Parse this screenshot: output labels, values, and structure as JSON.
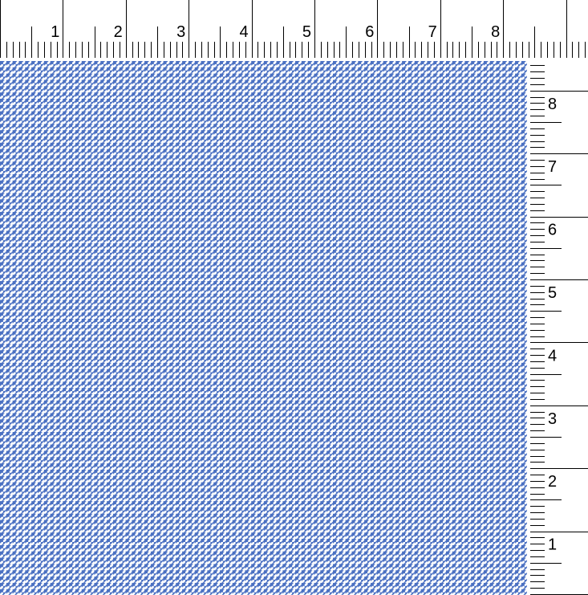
{
  "swatch": {
    "pattern": "houndstooth",
    "colors": {
      "primary": "#4a70c2",
      "background": "#ffffff"
    }
  },
  "top_ruler": {
    "labels": [
      "1",
      "2",
      "3",
      "4",
      "5",
      "6",
      "7",
      "8"
    ]
  },
  "right_ruler": {
    "labels": [
      "1",
      "2",
      "3",
      "4",
      "5",
      "6",
      "7",
      "8"
    ]
  }
}
